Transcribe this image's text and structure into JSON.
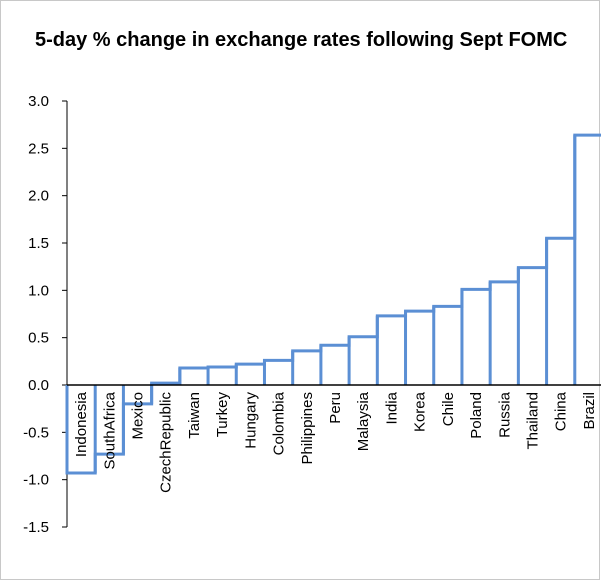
{
  "chart_data": {
    "type": "bar",
    "style": "step-outline",
    "title": "5-day % change in exchange rates following Sept FOMC",
    "xlabel": "",
    "ylabel": "",
    "ylim": [
      -1.5,
      3.0
    ],
    "yticks": [
      "3.0",
      "2.5",
      "2.0",
      "1.5",
      "1.0",
      "0.5",
      "0.0",
      "-0.5",
      "-1.0",
      "-1.5"
    ],
    "grid": false,
    "legend": "none",
    "color": "#5b8fd4",
    "categories": [
      "Indonesia",
      "SouthAfrica",
      "Mexico",
      "CzechRepublic",
      "Taiwan",
      "Turkey",
      "Hungary",
      "Colombia",
      "Philippines",
      "Peru",
      "Malaysia",
      "India",
      "Korea",
      "Chile",
      "Poland",
      "Russia",
      "Thailand",
      "China",
      "Brazil"
    ],
    "values": [
      -0.93,
      -0.73,
      -0.2,
      0.02,
      0.18,
      0.19,
      0.22,
      0.26,
      0.36,
      0.42,
      0.51,
      0.73,
      0.78,
      0.83,
      1.01,
      1.09,
      1.24,
      1.55,
      2.64
    ]
  }
}
